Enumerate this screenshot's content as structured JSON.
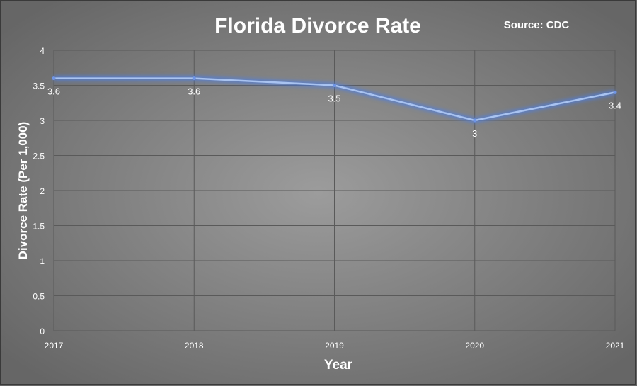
{
  "chart_data": {
    "type": "line",
    "title": "Florida Divorce Rate",
    "annotation": "Source: CDC",
    "xlabel": "Year",
    "ylabel": "Divorce Rate (Per 1,000)",
    "categories": [
      "2017",
      "2018",
      "2019",
      "2020",
      "2021"
    ],
    "series": [
      {
        "name": "Divorce Rate",
        "values": [
          3.6,
          3.6,
          3.5,
          3,
          3.4
        ],
        "labels": [
          "3.6",
          "3.6",
          "3.5",
          "3",
          "3.4"
        ]
      }
    ],
    "ylim": [
      0,
      4
    ],
    "yticks": [
      "0",
      "0.5",
      "1",
      "1.5",
      "2",
      "2.5",
      "3",
      "3.5",
      "4"
    ],
    "grid": true,
    "legend": "none",
    "colors": {
      "line": "#a9c3f0",
      "glow": "#4f7fe0",
      "grid": "#5a5a5a",
      "text": "#ffffff"
    }
  }
}
